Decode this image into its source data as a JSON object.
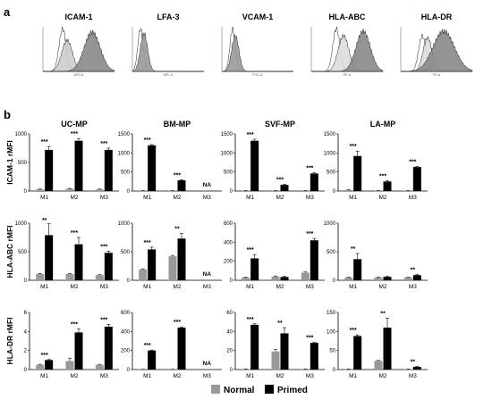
{
  "panel_a": {
    "letter": "a",
    "histograms": [
      {
        "title": "ICAM-1",
        "axis": "APC-A"
      },
      {
        "title": "LFA-3",
        "axis": "APC-A"
      },
      {
        "title": "VCAM-1",
        "axis": "FITC-A"
      },
      {
        "title": "HLA-ABC",
        "axis": "PE-A"
      },
      {
        "title": "HLA-DR",
        "axis": "PE-A"
      }
    ]
  },
  "panel_b": {
    "letter": "b",
    "columns": [
      "UC-MP",
      "BM-MP",
      "SVF-MP",
      "LA-MP"
    ],
    "rows": [
      "ICAM-1 rMFI",
      "HLA-ABC rMFI",
      "HLA-DR rMFI"
    ]
  },
  "legend": {
    "normal": "Normal",
    "primed": "Primed"
  },
  "colors": {
    "normal": "#999999",
    "primed": "#000000"
  },
  "chart_data": [
    {
      "type": "bar",
      "row": "ICAM-1 rMFI",
      "column": "UC-MP",
      "categories": [
        "M1",
        "M2",
        "M3"
      ],
      "yticks": [
        0,
        500,
        1000
      ],
      "ylim": [
        0,
        1000
      ],
      "series": [
        {
          "name": "Normal",
          "values": [
            30,
            40,
            30
          ]
        },
        {
          "name": "Primed",
          "values": [
            720,
            880,
            720
          ]
        }
      ],
      "primed_err": [
        60,
        40,
        30
      ],
      "normal_err": [
        5,
        5,
        5
      ],
      "sig": [
        "***",
        "***",
        "***"
      ],
      "na": []
    },
    {
      "type": "bar",
      "row": "ICAM-1 rMFI",
      "column": "BM-MP",
      "categories": [
        "M1",
        "M2",
        "M3"
      ],
      "yticks": [
        0,
        500,
        1000,
        1500
      ],
      "ylim": [
        0,
        1500
      ],
      "series": [
        {
          "name": "Normal",
          "values": [
            10,
            10,
            null
          ]
        },
        {
          "name": "Primed",
          "values": [
            1200,
            280,
            null
          ]
        }
      ],
      "primed_err": [
        20,
        15,
        0
      ],
      "normal_err": [
        2,
        2,
        0
      ],
      "sig": [
        "***",
        "***",
        ""
      ],
      "na": [
        2
      ]
    },
    {
      "type": "bar",
      "row": "ICAM-1 rMFI",
      "column": "SVF-MP",
      "categories": [
        "M1",
        "M2",
        "M3"
      ],
      "yticks": [
        0,
        500,
        1000,
        1500
      ],
      "ylim": [
        0,
        1500
      ],
      "series": [
        {
          "name": "Normal",
          "values": [
            15,
            15,
            15
          ]
        },
        {
          "name": "Primed",
          "values": [
            1320,
            160,
            460
          ]
        }
      ],
      "primed_err": [
        40,
        15,
        20
      ],
      "normal_err": [
        3,
        3,
        3
      ],
      "sig": [
        "***",
        "***",
        "***"
      ],
      "na": []
    },
    {
      "type": "bar",
      "row": "ICAM-1 rMFI",
      "column": "LA-MP",
      "categories": [
        "M1",
        "M2",
        "M3"
      ],
      "yticks": [
        0,
        500,
        1000,
        1500
      ],
      "ylim": [
        0,
        1500
      ],
      "series": [
        {
          "name": "Normal",
          "values": [
            30,
            15,
            15
          ]
        },
        {
          "name": "Primed",
          "values": [
            920,
            250,
            630
          ]
        }
      ],
      "primed_err": [
        130,
        20,
        10
      ],
      "normal_err": [
        5,
        3,
        3
      ],
      "sig": [
        "***",
        "***",
        "***"
      ],
      "na": []
    },
    {
      "type": "bar",
      "row": "HLA-ABC rMFI",
      "column": "UC-MP",
      "categories": [
        "M1",
        "M2",
        "M3"
      ],
      "yticks": [
        0,
        500,
        1000
      ],
      "ylim": [
        0,
        1000
      ],
      "series": [
        {
          "name": "Normal",
          "values": [
            110,
            110,
            90
          ]
        },
        {
          "name": "Primed",
          "values": [
            790,
            630,
            480
          ]
        }
      ],
      "primed_err": [
        200,
        120,
        30
      ],
      "normal_err": [
        10,
        10,
        8
      ],
      "sig": [
        "**",
        "***",
        "***"
      ],
      "na": []
    },
    {
      "type": "bar",
      "row": "HLA-ABC rMFI",
      "column": "BM-MP",
      "categories": [
        "M1",
        "M2",
        "M3"
      ],
      "yticks": [
        0,
        500,
        1000
      ],
      "ylim": [
        0,
        1000
      ],
      "series": [
        {
          "name": "Normal",
          "values": [
            190,
            420,
            null
          ]
        },
        {
          "name": "Primed",
          "values": [
            540,
            730,
            null
          ]
        }
      ],
      "primed_err": [
        40,
        90,
        0
      ],
      "normal_err": [
        10,
        15,
        0
      ],
      "sig": [
        "***",
        "**",
        ""
      ],
      "na": [
        2
      ]
    },
    {
      "type": "bar",
      "row": "HLA-ABC rMFI",
      "column": "SVF-MP",
      "categories": [
        "M1",
        "M2",
        "M3"
      ],
      "yticks": [
        0,
        200,
        400,
        600
      ],
      "ylim": [
        0,
        600
      ],
      "series": [
        {
          "name": "Normal",
          "values": [
            30,
            40,
            80
          ]
        },
        {
          "name": "Primed",
          "values": [
            230,
            35,
            420
          ]
        }
      ],
      "primed_err": [
        40,
        5,
        20
      ],
      "normal_err": [
        5,
        5,
        8
      ],
      "sig": [
        "***",
        "",
        "***"
      ],
      "na": []
    },
    {
      "type": "bar",
      "row": "HLA-ABC rMFI",
      "column": "LA-MP",
      "categories": [
        "M1",
        "M2",
        "M3"
      ],
      "yticks": [
        0,
        500,
        1000
      ],
      "ylim": [
        0,
        1000
      ],
      "series": [
        {
          "name": "Normal",
          "values": [
            50,
            50,
            50
          ]
        },
        {
          "name": "Primed",
          "values": [
            370,
            60,
            90
          ]
        }
      ],
      "primed_err": [
        100,
        15,
        10
      ],
      "normal_err": [
        8,
        8,
        8
      ],
      "sig": [
        "**",
        "",
        "**"
      ],
      "na": []
    },
    {
      "type": "bar",
      "row": "HLA-DR rMFI",
      "column": "UC-MP",
      "categories": [
        "M1",
        "M2",
        "M3"
      ],
      "yticks": [
        0,
        2,
        4,
        6
      ],
      "ylim": [
        0,
        6
      ],
      "series": [
        {
          "name": "Normal",
          "values": [
            0.5,
            0.9,
            0.5
          ]
        },
        {
          "name": "Primed",
          "values": [
            1.0,
            3.9,
            4.5
          ]
        }
      ],
      "primed_err": [
        0.05,
        0.35,
        0.25
      ],
      "normal_err": [
        0.05,
        0.3,
        0.05
      ],
      "sig": [
        "***",
        "***",
        "***"
      ],
      "na": []
    },
    {
      "type": "bar",
      "row": "HLA-DR rMFI",
      "column": "BM-MP",
      "categories": [
        "M1",
        "M2",
        "M3"
      ],
      "yticks": [
        0,
        200,
        400,
        600
      ],
      "ylim": [
        0,
        600
      ],
      "series": [
        {
          "name": "Normal",
          "values": [
            2,
            2,
            null
          ]
        },
        {
          "name": "Primed",
          "values": [
            200,
            440,
            null
          ]
        }
      ],
      "primed_err": [
        5,
        8,
        0
      ],
      "normal_err": [
        1,
        1,
        0
      ],
      "sig": [
        "***",
        "***",
        ""
      ],
      "na": [
        2
      ]
    },
    {
      "type": "bar",
      "row": "HLA-DR rMFI",
      "column": "SVF-MP",
      "categories": [
        "M1",
        "M2",
        "M3"
      ],
      "yticks": [
        0,
        20,
        40,
        60
      ],
      "ylim": [
        0,
        60
      ],
      "series": [
        {
          "name": "Normal",
          "values": [
            0.5,
            19,
            0.5
          ]
        },
        {
          "name": "Primed",
          "values": [
            47,
            38,
            28
          ]
        }
      ],
      "primed_err": [
        1,
        6,
        0.5
      ],
      "normal_err": [
        0.2,
        2,
        0.2
      ],
      "sig": [
        "***",
        "**",
        "***"
      ],
      "na": []
    },
    {
      "type": "bar",
      "row": "HLA-DR rMFI",
      "column": "LA-MP",
      "categories": [
        "M1",
        "M2",
        "M3"
      ],
      "yticks": [
        0,
        50,
        100,
        150
      ],
      "ylim": [
        0,
        150
      ],
      "series": [
        {
          "name": "Normal",
          "values": [
            1,
            23,
            1
          ]
        },
        {
          "name": "Primed",
          "values": [
            88,
            110,
            7
          ]
        }
      ],
      "primed_err": [
        3,
        25,
        1
      ],
      "normal_err": [
        0.5,
        1,
        0.5
      ],
      "sig": [
        "***",
        "**",
        "**"
      ],
      "na": []
    }
  ]
}
